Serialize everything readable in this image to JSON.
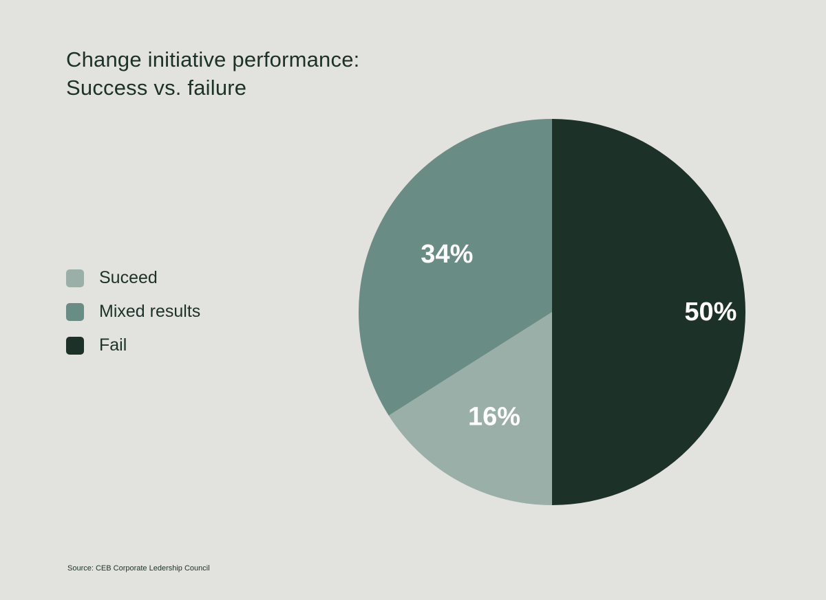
{
  "chart_data": {
    "type": "pie",
    "title": [
      "Change initiative performance:",
      "Success vs. failure"
    ],
    "slices": [
      {
        "label": "Fail",
        "value": 50,
        "value_label": "50%",
        "color": "#1c3128"
      },
      {
        "label": "Suceed",
        "value": 16,
        "value_label": "16%",
        "color": "#9aafa8"
      },
      {
        "label": "Mixed results",
        "value": 34,
        "value_label": "34%",
        "color": "#698c84"
      }
    ],
    "legend": {
      "placement": "left",
      "entries": [
        {
          "label": "Suceed",
          "color": "#9aafa8"
        },
        {
          "label": "Mixed results",
          "color": "#698c84"
        },
        {
          "label": "Fail",
          "color": "#1c3128"
        }
      ]
    },
    "source": "Source: CEB Corporate Ledership Council"
  }
}
